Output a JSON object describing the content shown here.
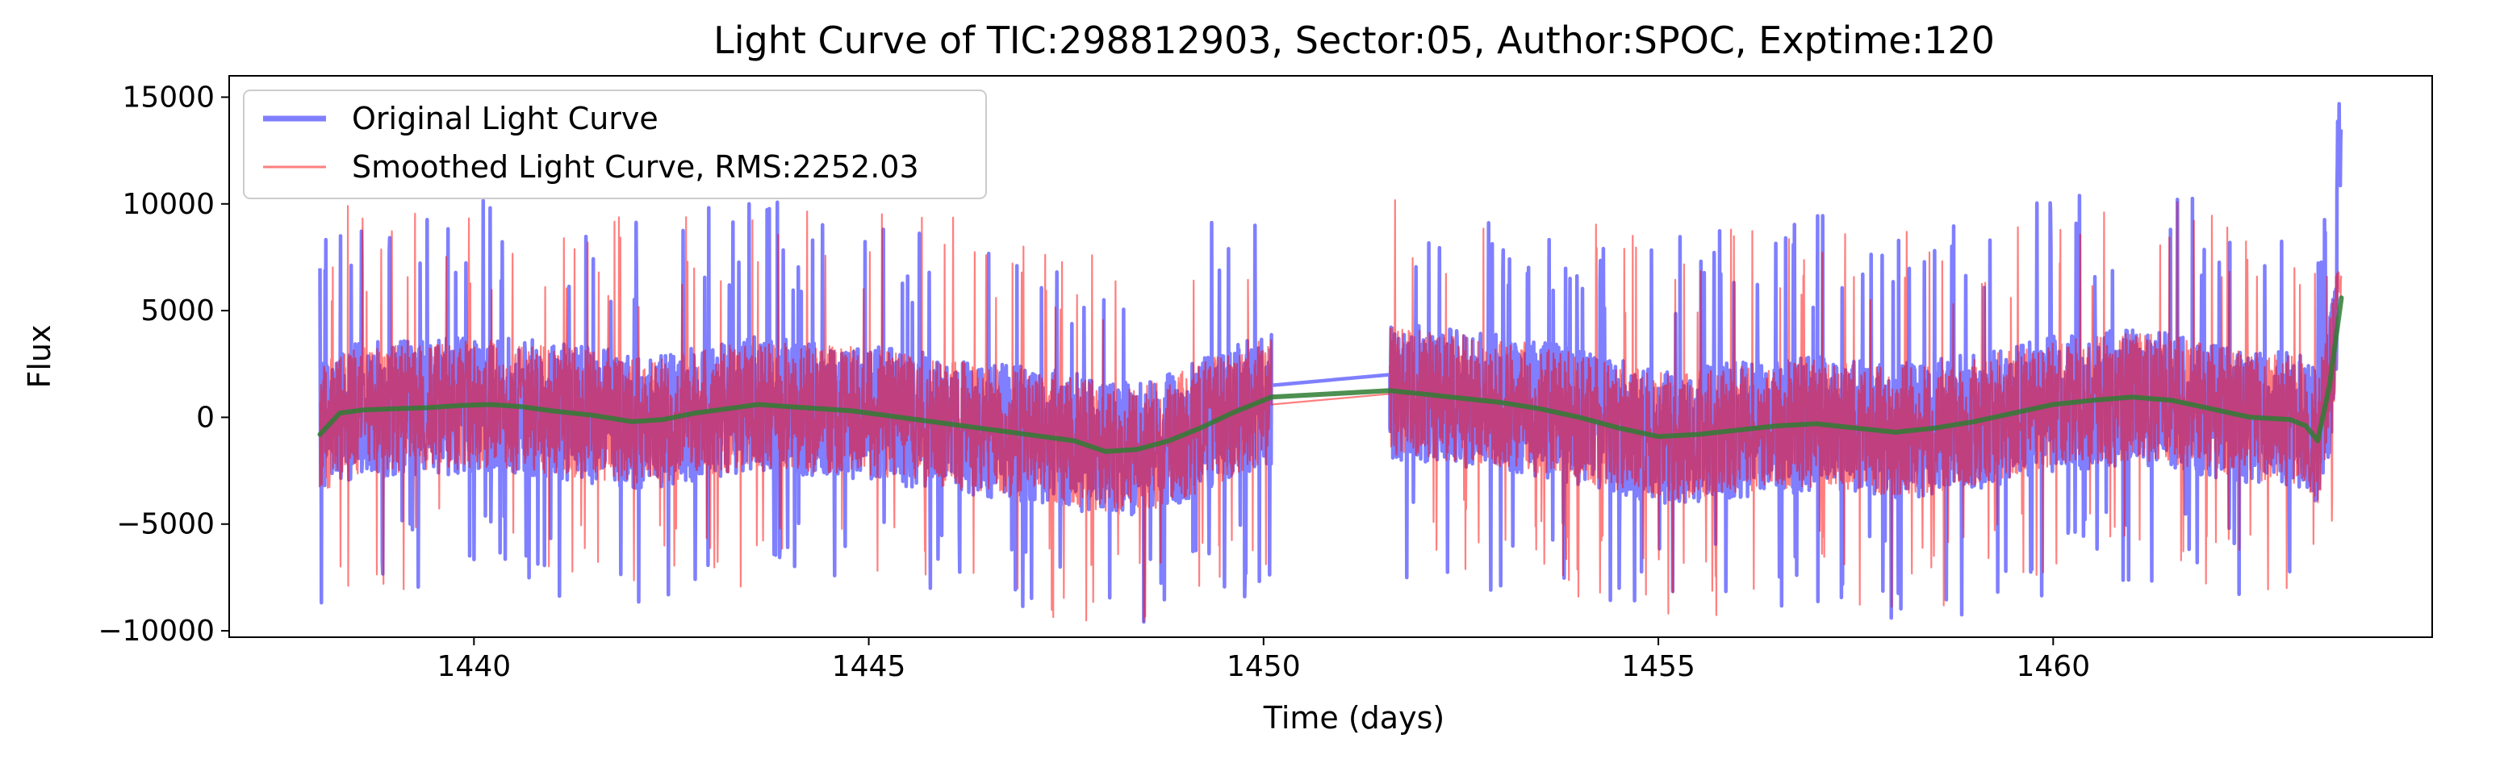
{
  "chart_data": {
    "type": "line",
    "title": "Light Curve of TIC:298812903, Sector:05, Author:SPOC, Exptime:120",
    "xlabel": "Time (days)",
    "ylabel": "Flux",
    "xlim": [
      1436.9,
      1464.8
    ],
    "ylim": [
      -10300,
      16000
    ],
    "x_ticks": [
      1440,
      1445,
      1450,
      1455,
      1460
    ],
    "y_ticks": [
      -10000,
      -5000,
      0,
      5000,
      10000,
      15000
    ],
    "y_tick_labels": [
      "−10000",
      "−5000",
      "0",
      "5000",
      "10000",
      "15000"
    ],
    "grid": false,
    "legend_position": "top-left",
    "gap": [
      1450.1,
      1451.6
    ],
    "segments": [
      [
        1438.05,
        1450.1
      ],
      [
        1451.6,
        1463.65
      ]
    ],
    "series": [
      {
        "name": "Original Light Curve",
        "color": "#0000ff",
        "alpha": 0.5,
        "style": "noisy",
        "noise_amplitude": 3200,
        "extremes_min": -9000,
        "extremes_max": 9800,
        "end_spike": 14800,
        "gap_line_y": [
          1500,
          2000
        ]
      },
      {
        "name": "Smoothed Light Curve, RMS:2252.03",
        "color": "#ff0000",
        "alpha": 0.5,
        "style": "noisy",
        "noise_amplitude": 3000,
        "extremes_min": -8600,
        "extremes_max": 9700,
        "end_spike": 7500,
        "gap_line_y": [
          600,
          1100
        ]
      },
      {
        "name": "",
        "color": "#2e7d32",
        "alpha": 0.85,
        "style": "trend",
        "x": [
          1438.05,
          1438.3,
          1438.6,
          1439.0,
          1439.4,
          1439.8,
          1440.2,
          1440.6,
          1441.0,
          1441.5,
          1442.0,
          1442.4,
          1442.8,
          1443.2,
          1443.6,
          1444.0,
          1444.4,
          1444.8,
          1445.2,
          1445.6,
          1446.0,
          1446.4,
          1446.8,
          1447.2,
          1447.6,
          1448.0,
          1448.4,
          1448.8,
          1449.2,
          1449.6,
          1450.1,
          1451.6,
          1452.0,
          1452.5,
          1453.0,
          1453.5,
          1454.0,
          1454.5,
          1455.0,
          1455.5,
          1456.0,
          1456.5,
          1457.0,
          1457.5,
          1458.0,
          1458.5,
          1459.0,
          1459.5,
          1460.0,
          1460.5,
          1461.0,
          1461.5,
          1462.0,
          1462.5,
          1463.0,
          1463.2,
          1463.35,
          1463.5,
          1463.65
        ],
        "y": [
          -800,
          200,
          350,
          400,
          450,
          550,
          600,
          500,
          300,
          100,
          -200,
          -100,
          200,
          400,
          600,
          500,
          400,
          300,
          100,
          -100,
          -300,
          -500,
          -700,
          -900,
          -1100,
          -1600,
          -1500,
          -1100,
          -500,
          200,
          950,
          1250,
          1100,
          900,
          700,
          400,
          0,
          -500,
          -900,
          -800,
          -600,
          -400,
          -300,
          -500,
          -700,
          -500,
          -200,
          200,
          600,
          800,
          950,
          800,
          400,
          0,
          -100,
          -400,
          -1100,
          1500,
          5600
        ]
      }
    ]
  }
}
